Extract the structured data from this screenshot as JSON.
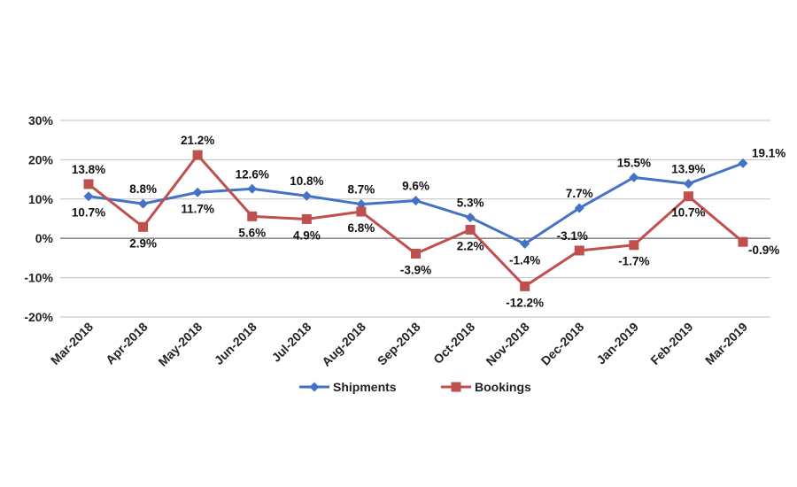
{
  "chart_data": {
    "type": "line",
    "title": "",
    "xlabel": "",
    "ylabel": "",
    "categories": [
      "Mar-2018",
      "Apr-2018",
      "May-2018",
      "Jun-2018",
      "Jul-2018",
      "Aug-2018",
      "Sep-2018",
      "Oct-2018",
      "Nov-2018",
      "Dec-2018",
      "Jan-2019",
      "Feb-2019",
      "Mar-2019"
    ],
    "ylim": [
      -20,
      30
    ],
    "yticks": [
      30,
      20,
      10,
      0,
      -10,
      -20
    ],
    "ytick_labels": [
      "30%",
      "20%",
      "10%",
      "0%",
      "-10%",
      "-20%"
    ],
    "grid": true,
    "legend_position": "bottom",
    "series": [
      {
        "name": "Shipments",
        "color": "#4472c4",
        "marker": "diamond",
        "values": [
          10.7,
          8.8,
          11.7,
          12.6,
          10.8,
          8.7,
          9.6,
          5.3,
          -1.4,
          7.7,
          15.5,
          13.9,
          19.1
        ],
        "labels": [
          "10.7%",
          "8.8%",
          "11.7%",
          "12.6%",
          "10.8%",
          "8.7%",
          "9.6%",
          "5.3%",
          "-1.4%",
          "7.7%",
          "15.5%",
          "13.9%",
          "19.1%"
        ]
      },
      {
        "name": "Bookings",
        "color": "#c0504d",
        "marker": "square",
        "values": [
          13.8,
          2.9,
          21.2,
          5.6,
          4.9,
          6.8,
          -3.9,
          2.2,
          -12.2,
          -3.1,
          -1.7,
          10.7,
          -0.9
        ],
        "labels": [
          "13.8%",
          "2.9%",
          "21.2%",
          "5.6%",
          "4.9%",
          "6.8%",
          "-3.9%",
          "2.2%",
          "-12.2%",
          "-3.1%",
          "-1.7%",
          "10.7%",
          "-0.9%"
        ]
      }
    ]
  }
}
